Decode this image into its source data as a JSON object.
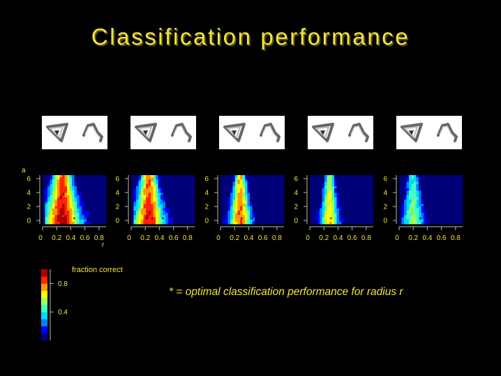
{
  "title": "Classification performance",
  "footnote": "* = optimal classification performance for radius r",
  "colorbar": {
    "title": "fraction correct",
    "ticks": [
      {
        "label": "0.8",
        "value": 0.8
      },
      {
        "label": "0.4",
        "value": 0.4
      }
    ],
    "range": [
      0,
      1
    ],
    "colors": [
      "#00007a",
      "#0000ff",
      "#0080ff",
      "#00d8ff",
      "#40ffc0",
      "#a0ff60",
      "#ffff00",
      "#ff9a00",
      "#ff2400",
      "#b00000"
    ]
  },
  "chart_data": [
    {
      "type": "heatmap",
      "ylabel": "a",
      "xlabel": "r",
      "x_ticks": [
        "0",
        "0.2",
        "0.4",
        "0.6",
        "0.8"
      ],
      "y_ticks": [
        "0",
        "2",
        "4",
        "6"
      ],
      "xlim": [
        0,
        0.9
      ],
      "ylim": [
        -0.5,
        6.5
      ],
      "peak_r": 0.28,
      "peak_value": 0.95,
      "spread": 0.2
    },
    {
      "type": "heatmap",
      "ylabel": "",
      "xlabel": "",
      "x_ticks": [
        "0",
        "0.2",
        "0.4",
        "0.6",
        "0.8"
      ],
      "y_ticks": [
        "0",
        "2",
        "4",
        "6"
      ],
      "xlim": [
        0,
        0.9
      ],
      "ylim": [
        -0.5,
        6.5
      ],
      "peak_r": 0.25,
      "peak_value": 0.9,
      "spread": 0.17
    },
    {
      "type": "heatmap",
      "ylabel": "",
      "xlabel": "",
      "x_ticks": [
        "0",
        "0.2",
        "0.4",
        "0.6",
        "0.8"
      ],
      "y_ticks": [
        "0",
        "2",
        "4",
        "6"
      ],
      "xlim": [
        0,
        0.9
      ],
      "ylim": [
        -0.5,
        6.5
      ],
      "peak_r": 0.28,
      "peak_value": 0.82,
      "spread": 0.12
    },
    {
      "type": "heatmap",
      "ylabel": "",
      "xlabel": "",
      "x_ticks": [
        "0",
        "0.2",
        "0.4",
        "0.6",
        "0.8"
      ],
      "y_ticks": [
        "0",
        "2",
        "4",
        "6"
      ],
      "xlim": [
        0,
        0.9
      ],
      "ylim": [
        -0.5,
        6.5
      ],
      "peak_r": 0.28,
      "peak_value": 0.7,
      "spread": 0.1
    },
    {
      "type": "heatmap",
      "ylabel": "",
      "xlabel": "",
      "x_ticks": [
        "0",
        "0.2",
        "0.4",
        "0.6",
        "0.8"
      ],
      "y_ticks": [
        "0",
        "2",
        "4",
        "6"
      ],
      "xlim": [
        0,
        0.9
      ],
      "ylim": [
        -0.5,
        6.5
      ],
      "peak_r": 0.2,
      "peak_value": 0.55,
      "spread": 0.12
    }
  ]
}
